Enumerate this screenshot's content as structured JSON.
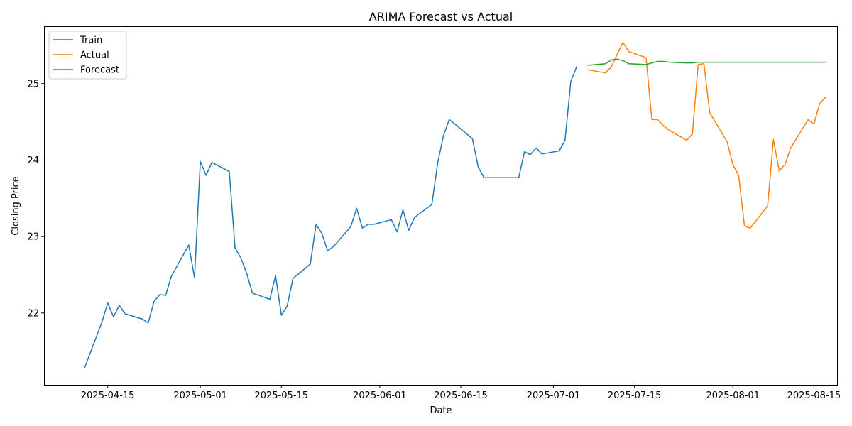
{
  "chart_data": {
    "type": "line",
    "title": "ARIMA Forecast vs Actual",
    "xlabel": "Date",
    "ylabel": "Closing Price",
    "x_tick_labels": [
      "2025-04-15",
      "2025-05-01",
      "2025-05-15",
      "2025-06-01",
      "2025-06-15",
      "2025-07-01",
      "2025-07-15",
      "2025-08-01",
      "2025-08-15"
    ],
    "y_ticks": [
      22,
      23,
      24,
      25
    ],
    "xlim": [
      "2025-04-04",
      "2025-08-19"
    ],
    "ylim": [
      21.06,
      25.75
    ],
    "grid": false,
    "legend": {
      "position": "top-left",
      "entries": [
        "Train",
        "Actual",
        "Forecast"
      ]
    },
    "series": [
      {
        "name": "Train",
        "color": "#1f77b4",
        "points": [
          [
            "2025-04-11",
            21.28
          ],
          [
            "2025-04-14",
            21.88
          ],
          [
            "2025-04-15",
            22.13
          ],
          [
            "2025-04-16",
            21.95
          ],
          [
            "2025-04-17",
            22.1
          ],
          [
            "2025-04-18",
            21.99
          ],
          [
            "2025-04-21",
            21.92
          ],
          [
            "2025-04-22",
            21.87
          ],
          [
            "2025-04-23",
            22.15
          ],
          [
            "2025-04-24",
            22.24
          ],
          [
            "2025-04-25",
            22.23
          ],
          [
            "2025-04-26",
            22.48
          ],
          [
            "2025-04-29",
            22.89
          ],
          [
            "2025-04-30",
            22.46
          ],
          [
            "2025-05-01",
            23.98
          ],
          [
            "2025-05-02",
            23.8
          ],
          [
            "2025-05-03",
            23.97
          ],
          [
            "2025-05-06",
            23.85
          ],
          [
            "2025-05-07",
            22.85
          ],
          [
            "2025-05-08",
            22.72
          ],
          [
            "2025-05-09",
            22.52
          ],
          [
            "2025-05-10",
            22.26
          ],
          [
            "2025-05-13",
            22.18
          ],
          [
            "2025-05-14",
            22.49
          ],
          [
            "2025-05-15",
            21.97
          ],
          [
            "2025-05-16",
            22.09
          ],
          [
            "2025-05-17",
            22.45
          ],
          [
            "2025-05-20",
            22.64
          ],
          [
            "2025-05-21",
            23.16
          ],
          [
            "2025-05-22",
            23.04
          ],
          [
            "2025-05-23",
            22.81
          ],
          [
            "2025-05-24",
            22.87
          ],
          [
            "2025-05-27",
            23.13
          ],
          [
            "2025-05-28",
            23.37
          ],
          [
            "2025-05-29",
            23.11
          ],
          [
            "2025-05-30",
            23.16
          ],
          [
            "2025-05-31",
            23.16
          ],
          [
            "2025-06-03",
            23.22
          ],
          [
            "2025-06-04",
            23.06
          ],
          [
            "2025-06-05",
            23.35
          ],
          [
            "2025-06-06",
            23.08
          ],
          [
            "2025-06-07",
            23.25
          ],
          [
            "2025-06-10",
            23.42
          ],
          [
            "2025-06-11",
            23.96
          ],
          [
            "2025-06-12",
            24.32
          ],
          [
            "2025-06-13",
            24.53
          ],
          [
            "2025-06-14",
            24.47
          ],
          [
            "2025-06-17",
            24.28
          ],
          [
            "2025-06-18",
            23.91
          ],
          [
            "2025-06-19",
            23.77
          ],
          [
            "2025-06-20",
            23.77
          ],
          [
            "2025-06-25",
            23.77
          ],
          [
            "2025-06-26",
            24.11
          ],
          [
            "2025-06-27",
            24.07
          ],
          [
            "2025-06-28",
            24.16
          ],
          [
            "2025-06-29",
            24.08
          ],
          [
            "2025-07-02",
            24.12
          ],
          [
            "2025-07-03",
            24.26
          ],
          [
            "2025-07-04",
            25.03
          ],
          [
            "2025-07-05",
            25.22
          ]
        ]
      },
      {
        "name": "Actual",
        "color": "#ff7f0e",
        "points": [
          [
            "2025-07-07",
            25.18
          ],
          [
            "2025-07-10",
            25.14
          ],
          [
            "2025-07-11",
            25.22
          ],
          [
            "2025-07-12",
            25.38
          ],
          [
            "2025-07-13",
            25.54
          ],
          [
            "2025-07-14",
            25.42
          ],
          [
            "2025-07-17",
            25.34
          ],
          [
            "2025-07-18",
            24.53
          ],
          [
            "2025-07-19",
            24.53
          ],
          [
            "2025-07-20",
            24.45
          ],
          [
            "2025-07-21",
            24.39
          ],
          [
            "2025-07-24",
            24.26
          ],
          [
            "2025-07-25",
            24.34
          ],
          [
            "2025-07-26",
            25.25
          ],
          [
            "2025-07-27",
            25.26
          ],
          [
            "2025-07-28",
            24.62
          ],
          [
            "2025-07-31",
            24.24
          ],
          [
            "2025-08-01",
            23.94
          ],
          [
            "2025-08-02",
            23.8
          ],
          [
            "2025-08-03",
            23.14
          ],
          [
            "2025-08-04",
            23.11
          ],
          [
            "2025-08-07",
            23.4
          ],
          [
            "2025-08-08",
            24.27
          ],
          [
            "2025-08-09",
            23.86
          ],
          [
            "2025-08-10",
            23.94
          ],
          [
            "2025-08-11",
            24.16
          ],
          [
            "2025-08-14",
            24.53
          ],
          [
            "2025-08-15",
            24.47
          ],
          [
            "2025-08-16",
            24.74
          ],
          [
            "2025-08-17",
            24.82
          ]
        ]
      },
      {
        "name": "Forecast",
        "color": "#2ca02c",
        "points": [
          [
            "2025-07-07",
            25.24
          ],
          [
            "2025-07-10",
            25.26
          ],
          [
            "2025-07-11",
            25.31
          ],
          [
            "2025-07-12",
            25.32
          ],
          [
            "2025-07-13",
            25.3
          ],
          [
            "2025-07-14",
            25.26
          ],
          [
            "2025-07-17",
            25.25
          ],
          [
            "2025-07-18",
            25.27
          ],
          [
            "2025-07-19",
            25.29
          ],
          [
            "2025-07-20",
            25.29
          ],
          [
            "2025-07-21",
            25.28
          ],
          [
            "2025-07-24",
            25.27
          ],
          [
            "2025-07-25",
            25.27
          ],
          [
            "2025-07-26",
            25.28
          ],
          [
            "2025-07-27",
            25.28
          ],
          [
            "2025-07-28",
            25.28
          ],
          [
            "2025-07-31",
            25.28
          ],
          [
            "2025-08-01",
            25.28
          ],
          [
            "2025-08-02",
            25.28
          ],
          [
            "2025-08-03",
            25.28
          ],
          [
            "2025-08-04",
            25.28
          ],
          [
            "2025-08-07",
            25.28
          ],
          [
            "2025-08-08",
            25.28
          ],
          [
            "2025-08-09",
            25.28
          ],
          [
            "2025-08-10",
            25.28
          ],
          [
            "2025-08-11",
            25.28
          ],
          [
            "2025-08-14",
            25.28
          ],
          [
            "2025-08-15",
            25.28
          ],
          [
            "2025-08-16",
            25.28
          ],
          [
            "2025-08-17",
            25.28
          ]
        ]
      }
    ]
  }
}
